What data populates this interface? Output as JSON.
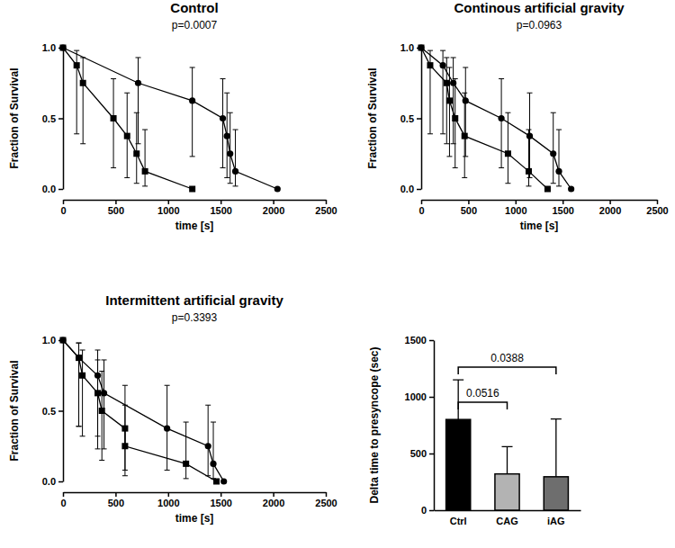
{
  "chart_data": [
    {
      "type": "line",
      "title": "Control",
      "subtitle": "p=0.0007",
      "x_label": "time [s]",
      "y_label": "Fraction of Survival",
      "xlim": [
        0,
        2500
      ],
      "xticks": [
        0,
        500,
        1000,
        1500,
        2000,
        2500
      ],
      "ylim": [
        0,
        1
      ],
      "yticks": [
        {
          "value": 0,
          "label": "0.0"
        },
        {
          "value": 0.5,
          "label": "0.5"
        },
        {
          "value": 1,
          "label": "1.0"
        }
      ],
      "grid": false,
      "series": [
        {
          "color": "#000000",
          "marker": "square",
          "line_style": "solid",
          "x": [
            0,
            130,
            190,
            480,
            610,
            700,
            780,
            1230
          ],
          "values": [
            1,
            0.875,
            0.75,
            0.5,
            0.375,
            0.25,
            0.125,
            0
          ],
          "ci_lower": [
            null,
            0.39,
            0.32,
            0.15,
            0.08,
            0.04,
            0.02,
            null
          ],
          "ci_upper": [
            null,
            0.98,
            0.93,
            0.78,
            0.68,
            0.54,
            0.42,
            null
          ]
        },
        {
          "color": "#000000",
          "marker": "circle",
          "line_style": "solid",
          "x": [
            0,
            715,
            1230,
            1520,
            1560,
            1590,
            1640,
            2040
          ],
          "values": [
            1,
            0.75,
            0.625,
            0.5,
            0.375,
            0.25,
            0.125,
            0
          ],
          "ci_lower": [
            null,
            0.32,
            0.23,
            0.15,
            0.08,
            0.04,
            0.02,
            null
          ],
          "ci_upper": [
            null,
            0.93,
            0.86,
            0.78,
            0.68,
            0.54,
            0.42,
            null
          ]
        }
      ]
    },
    {
      "type": "line",
      "title": "Continous artificial gravity",
      "subtitle": "p=0.0963",
      "x_label": "time [s]",
      "y_label": "Fraction of Survival",
      "xlim": [
        0,
        2500
      ],
      "xticks": [
        0,
        500,
        1000,
        1500,
        2000,
        2500
      ],
      "ylim": [
        0,
        1
      ],
      "yticks": [
        {
          "value": 0,
          "label": "0.0"
        },
        {
          "value": 0.5,
          "label": "0.5"
        },
        {
          "value": 1,
          "label": "1.0"
        }
      ],
      "grid": false,
      "series": [
        {
          "color": "#000000",
          "marker": "square",
          "line_style": "solid",
          "x": [
            0,
            95,
            270,
            300,
            360,
            460,
            920,
            1140,
            1340
          ],
          "values": [
            1,
            0.875,
            0.75,
            0.625,
            0.5,
            0.375,
            0.25,
            0.125,
            0
          ],
          "ci_lower": [
            null,
            0.39,
            0.32,
            0.23,
            0.15,
            0.08,
            0.04,
            0.02,
            null
          ],
          "ci_upper": [
            null,
            0.98,
            0.93,
            0.86,
            0.78,
            0.68,
            0.54,
            0.42,
            null
          ]
        },
        {
          "color": "#000000",
          "marker": "circle",
          "line_style": "solid",
          "x": [
            0,
            230,
            340,
            470,
            850,
            1150,
            1400,
            1460,
            1590
          ],
          "values": [
            1,
            0.875,
            0.75,
            0.625,
            0.5,
            0.375,
            0.25,
            0.125,
            0
          ],
          "ci_lower": [
            null,
            0.39,
            0.32,
            0.23,
            0.15,
            0.08,
            0.04,
            0.02,
            null
          ],
          "ci_upper": [
            null,
            0.98,
            0.93,
            0.86,
            0.78,
            0.68,
            0.54,
            0.42,
            null
          ]
        }
      ]
    },
    {
      "type": "line",
      "title": "Intermittent artificial gravity",
      "subtitle": "p=0.3393",
      "x_label": "time [s]",
      "y_label": "Fraction of Survival",
      "xlim": [
        0,
        2500
      ],
      "xticks": [
        0,
        500,
        1000,
        1500,
        2000,
        2500
      ],
      "ylim": [
        0,
        1
      ],
      "yticks": [
        {
          "value": 0,
          "label": "0.0"
        },
        {
          "value": 0.5,
          "label": "0.5"
        },
        {
          "value": 1,
          "label": "1.0"
        }
      ],
      "grid": false,
      "series": [
        {
          "color": "#000000",
          "marker": "square",
          "line_style": "solid",
          "x": [
            0,
            150,
            185,
            330,
            370,
            590,
            590,
            1170,
            1460
          ],
          "values": [
            1,
            0.875,
            0.75,
            0.625,
            0.5,
            0.375,
            0.25,
            0.125,
            0
          ],
          "ci_lower": [
            null,
            0.39,
            0.32,
            0.23,
            0.15,
            0.08,
            0.04,
            0.02,
            null
          ],
          "ci_upper": [
            null,
            0.98,
            0.93,
            0.86,
            0.78,
            0.68,
            0.54,
            0.42,
            null
          ]
        },
        {
          "color": "#000000",
          "marker": "circle",
          "line_style": "solid",
          "x": [
            0,
            150,
            330,
            390,
            990,
            1380,
            1430,
            1530
          ],
          "values": [
            1,
            0.875,
            0.75,
            0.625,
            0.375,
            0.25,
            0.125,
            0
          ],
          "ci_lower": [
            null,
            0.39,
            0.32,
            0.23,
            0.08,
            0.04,
            0.02,
            null
          ],
          "ci_upper": [
            null,
            0.98,
            0.93,
            0.86,
            0.68,
            0.54,
            0.42,
            null
          ]
        }
      ]
    },
    {
      "type": "bar",
      "y_label": "Delta time to presyncope (sec)",
      "categories": [
        "Ctrl",
        "CAG",
        "iAG"
      ],
      "values": [
        800,
        320,
        295
      ],
      "errors": [
        350,
        240,
        510
      ],
      "colors": [
        "#000000",
        "#b3b3b3",
        "#6e6e6e"
      ],
      "ylim": [
        0,
        1500
      ],
      "yticks": [
        0,
        500,
        1000,
        1500
      ],
      "grid": false,
      "comparisons": [
        {
          "label": "0.0516",
          "groups": [
            "Ctrl",
            "CAG"
          ]
        },
        {
          "label": "0.0388",
          "groups": [
            "Ctrl",
            "iAG"
          ]
        }
      ]
    }
  ]
}
